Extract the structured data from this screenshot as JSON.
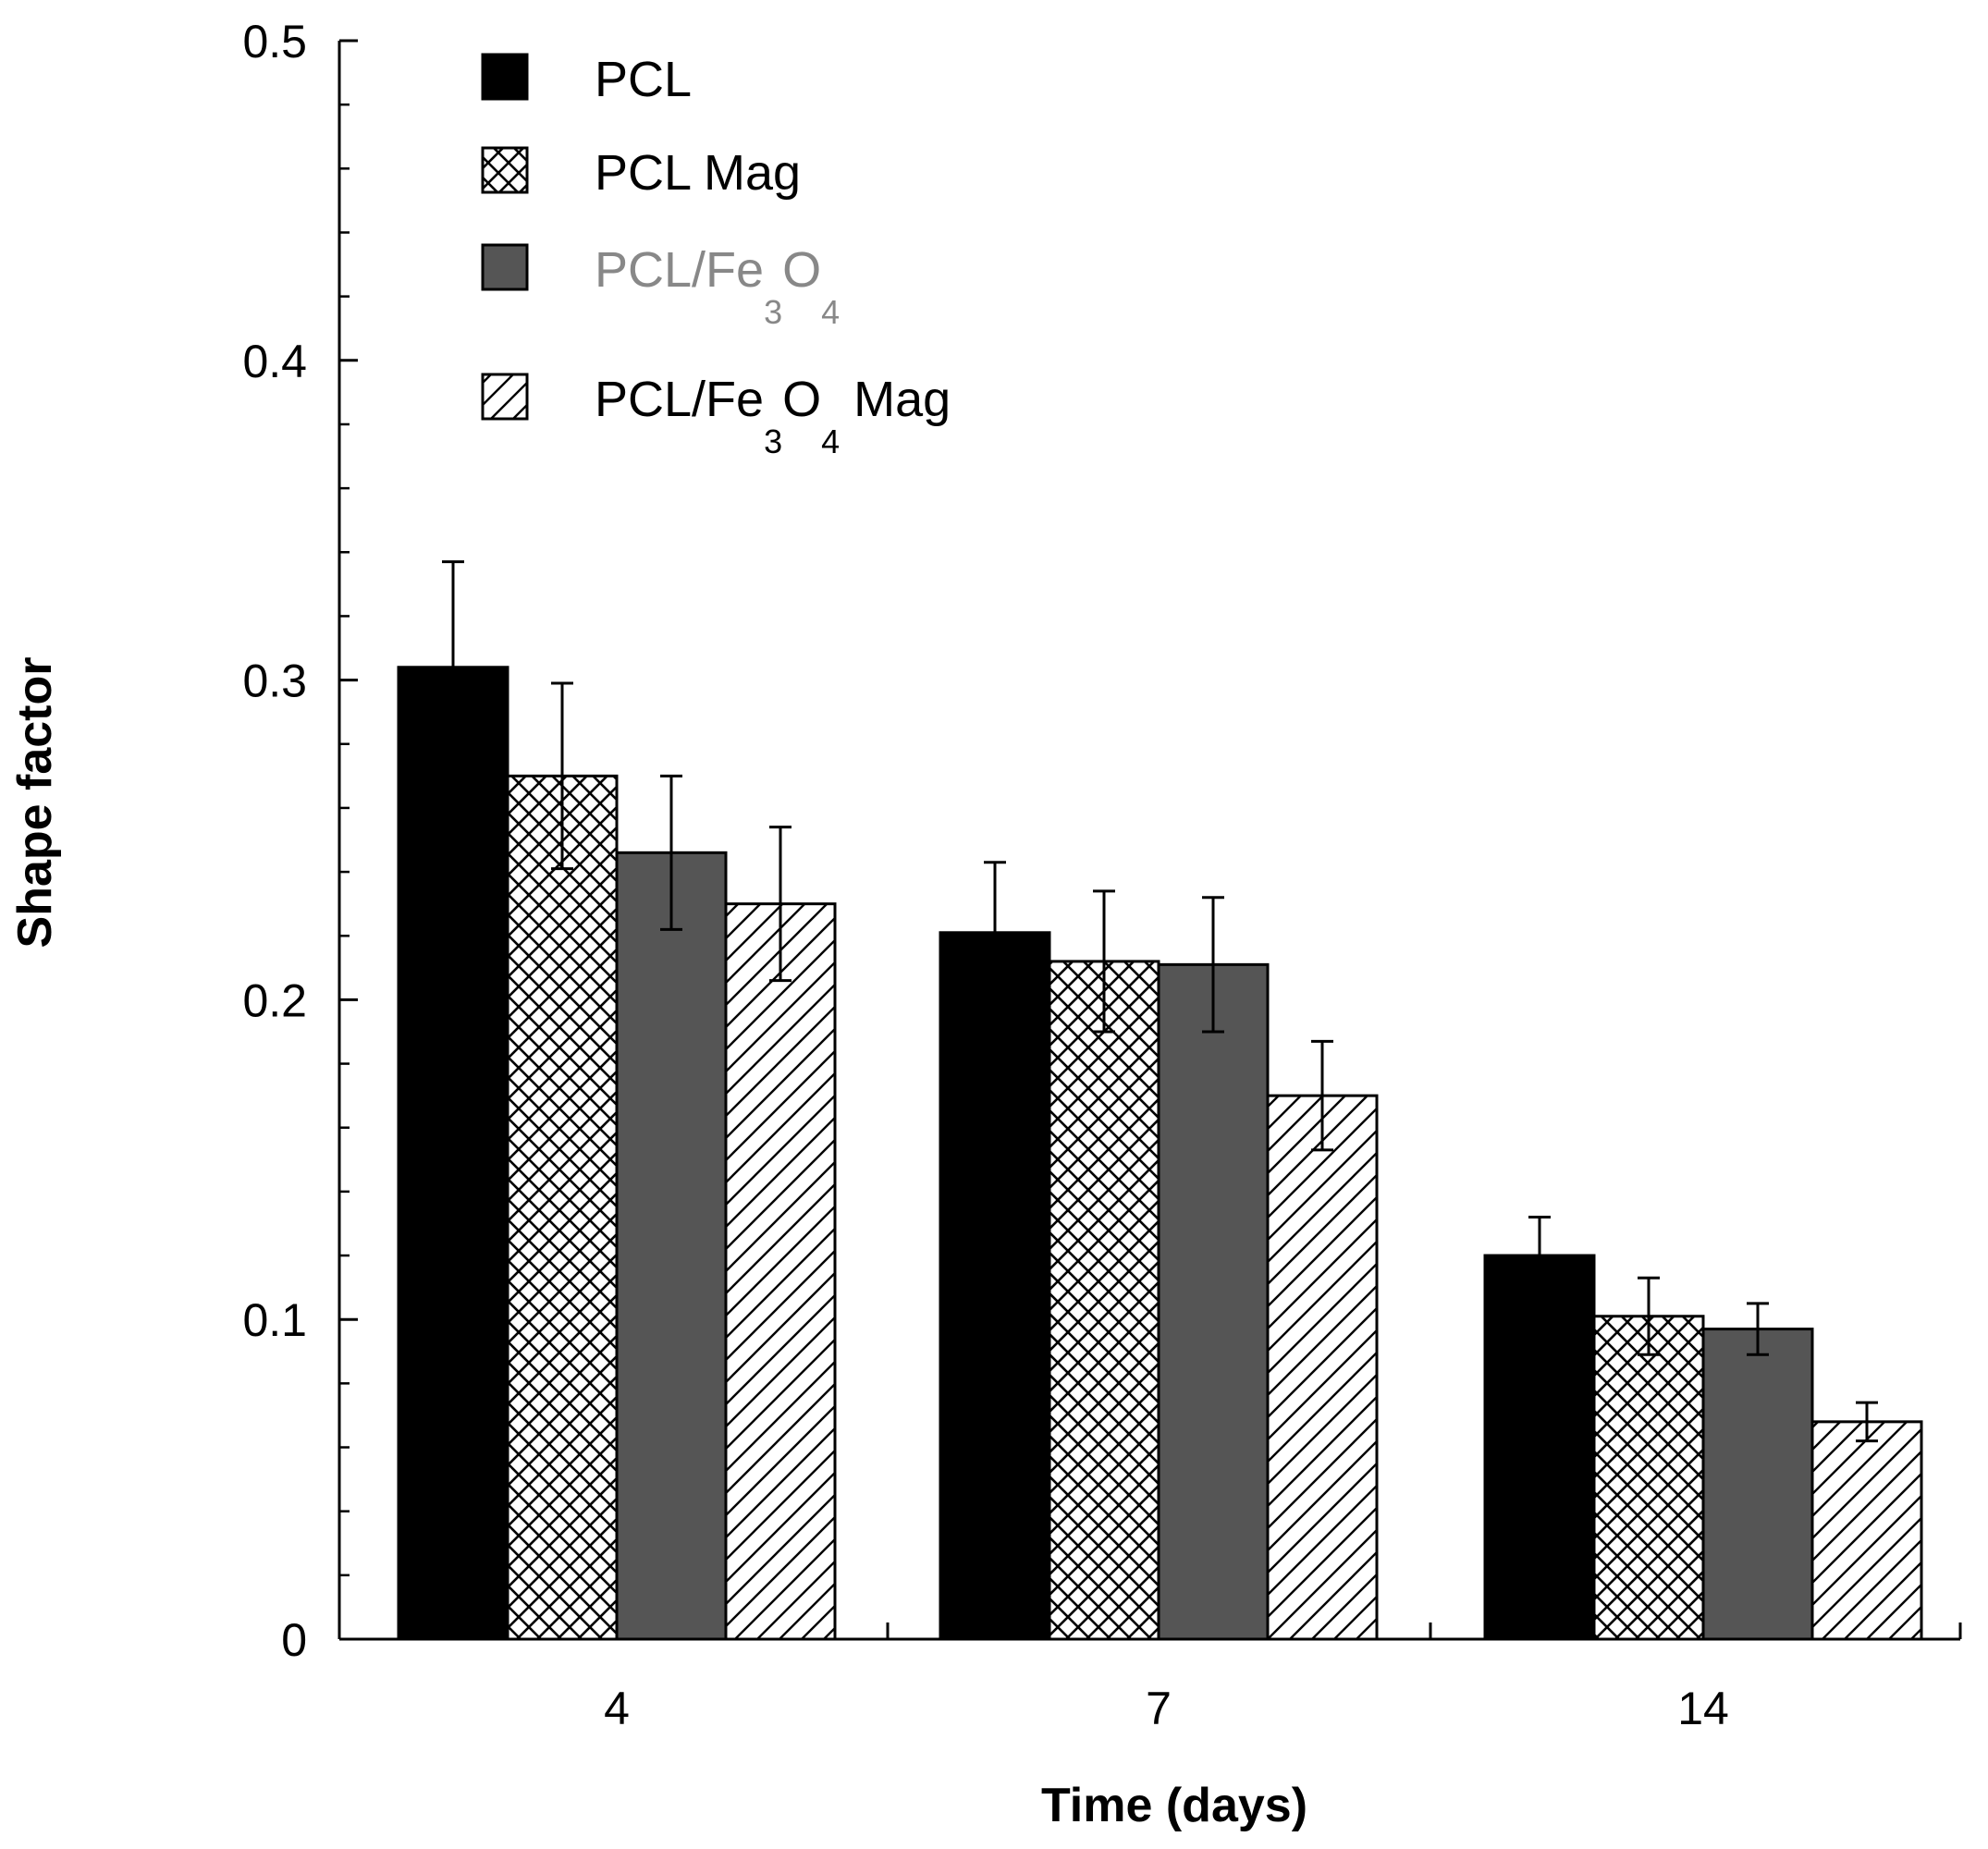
{
  "chart_data": {
    "type": "bar",
    "xlabel": "Time (days)",
    "ylabel": "Shape factor",
    "ylim": [
      0,
      0.5
    ],
    "yticks": [
      "0",
      "0.1",
      "0.2",
      "0.3",
      "0.4",
      "0.5"
    ],
    "categories": [
      "4",
      "7",
      "14"
    ],
    "legend_position": "top-left",
    "series": [
      {
        "name": "PCL",
        "fill": "solid",
        "color": "#000000",
        "values": [
          0.304,
          0.221,
          0.12
        ],
        "errors": [
          0.033,
          0.022,
          0.012
        ]
      },
      {
        "name": "PCL Mag",
        "fill": "crosshatch",
        "color": "#000000",
        "values": [
          0.27,
          0.212,
          0.101
        ],
        "errors": [
          0.029,
          0.022,
          0.012
        ]
      },
      {
        "name": "PCL/Fe3O4",
        "fill": "solid",
        "color": "#555555",
        "values": [
          0.246,
          0.211,
          0.097
        ],
        "errors": [
          0.024,
          0.021,
          0.008
        ]
      },
      {
        "name": "PCL/Fe3O4 Mag",
        "fill": "diagonal",
        "color": "#000000",
        "values": [
          0.23,
          0.17,
          0.068
        ],
        "errors": [
          0.024,
          0.017,
          0.006
        ]
      }
    ],
    "legend": {
      "items": [
        {
          "parts": [
            [
              "PCL",
              false
            ]
          ],
          "color": "#000000"
        },
        {
          "parts": [
            [
              "PCL Mag",
              false
            ]
          ],
          "color": "#000000"
        },
        {
          "parts": [
            [
              "PCL/Fe",
              false
            ],
            [
              "3",
              true
            ],
            [
              "O",
              false
            ],
            [
              "4",
              true
            ]
          ],
          "color": "#888888"
        },
        {
          "parts": [
            [
              "PCL/Fe",
              false
            ],
            [
              "3",
              true
            ],
            [
              "O",
              false
            ],
            [
              "4",
              true
            ],
            [
              " Mag",
              false
            ]
          ],
          "color": "#000000"
        }
      ]
    }
  }
}
